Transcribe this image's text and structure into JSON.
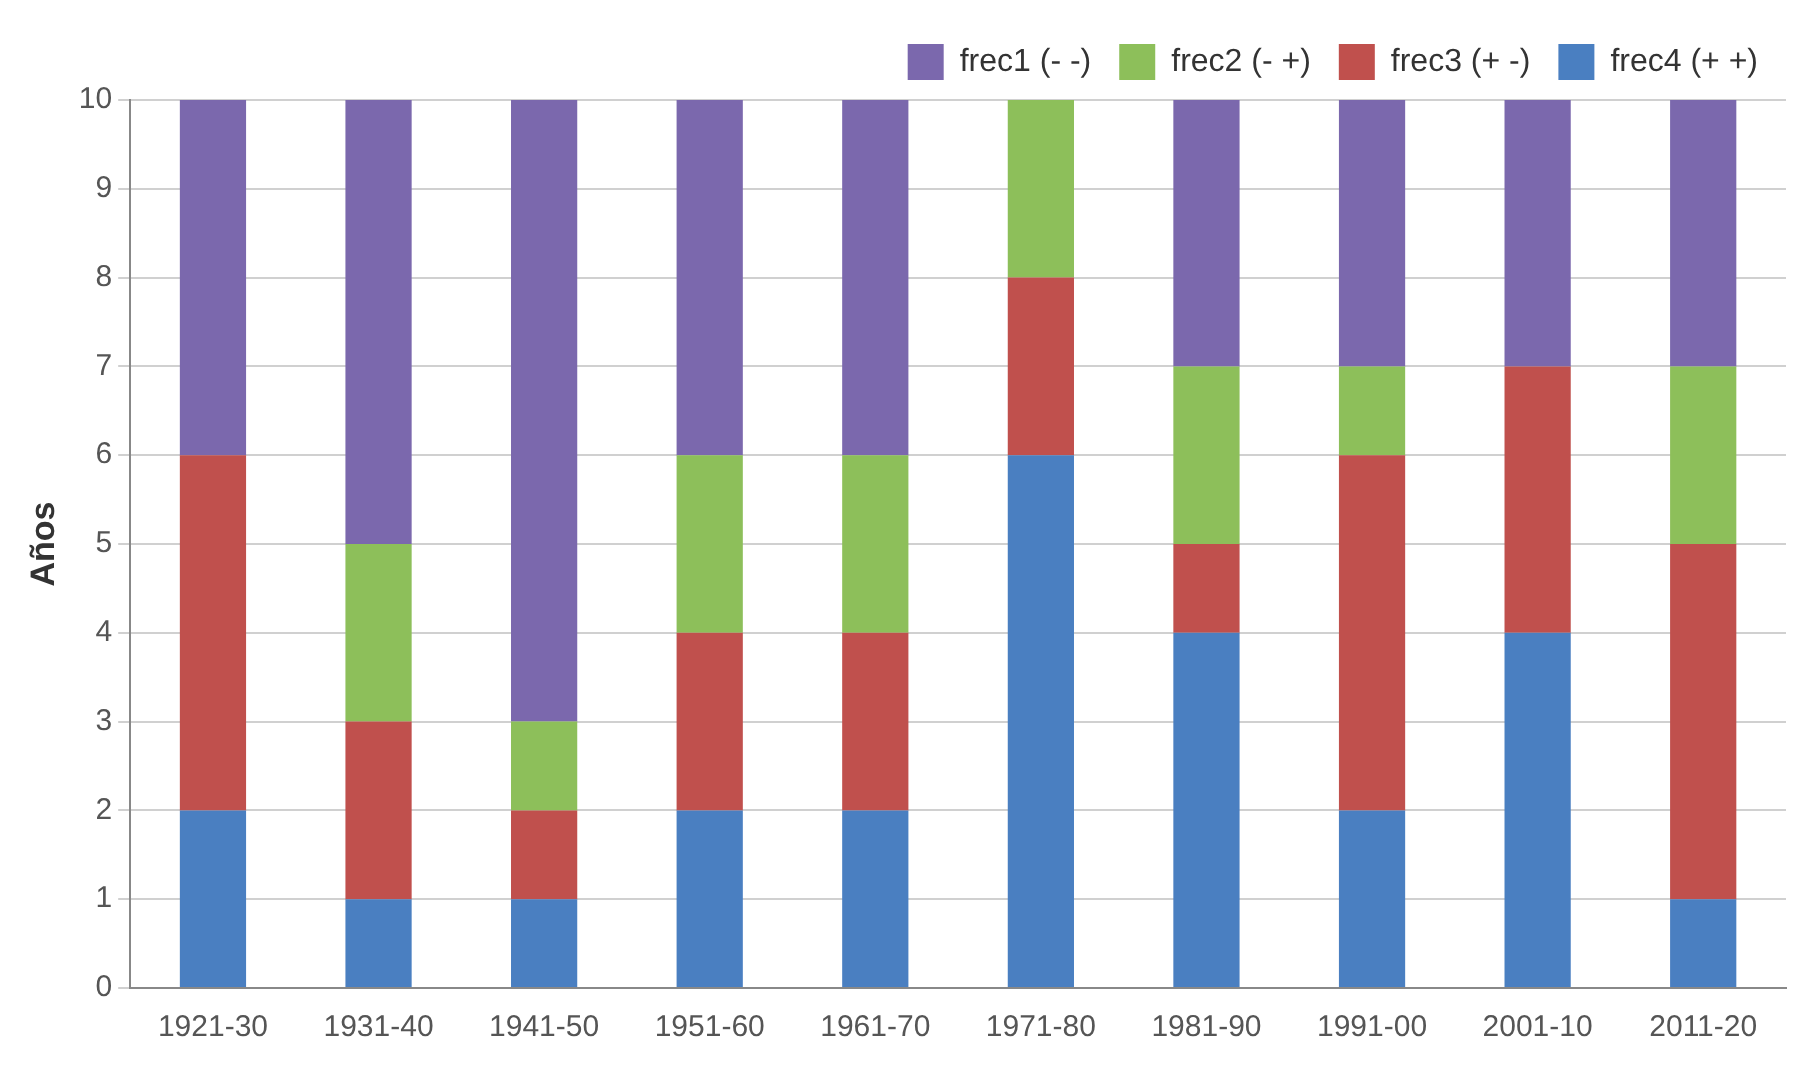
{
  "chart_data": {
    "type": "bar",
    "stacked": true,
    "ylabel": "Años",
    "categories": [
      "1921-30",
      "1931-40",
      "1941-50",
      "1951-60",
      "1961-70",
      "1971-80",
      "1981-90",
      "1991-00",
      "2001-10",
      "2011-20"
    ],
    "series": [
      {
        "name": "frec4 (+ +)",
        "color": "#4a7fc1",
        "values": [
          2,
          1,
          1,
          2,
          2,
          6,
          4,
          2,
          4,
          1
        ]
      },
      {
        "name": "frec3 (+ -)",
        "color": "#c0504d",
        "values": [
          4,
          2,
          1,
          2,
          2,
          2,
          1,
          4,
          3,
          4
        ]
      },
      {
        "name": "frec2 (- +)",
        "color": "#8dbf5a",
        "values": [
          0,
          2,
          1,
          2,
          2,
          2,
          2,
          1,
          0,
          2
        ]
      },
      {
        "name": "frec1 (- -)",
        "color": "#7b68ad",
        "values": [
          4,
          5,
          7,
          4,
          4,
          0,
          3,
          3,
          3,
          3
        ]
      }
    ],
    "ylim": [
      0,
      10
    ],
    "yticks": [
      0,
      1,
      2,
      3,
      4,
      5,
      6,
      7,
      8,
      9,
      10
    ],
    "grid": "y",
    "legend": "top right"
  }
}
